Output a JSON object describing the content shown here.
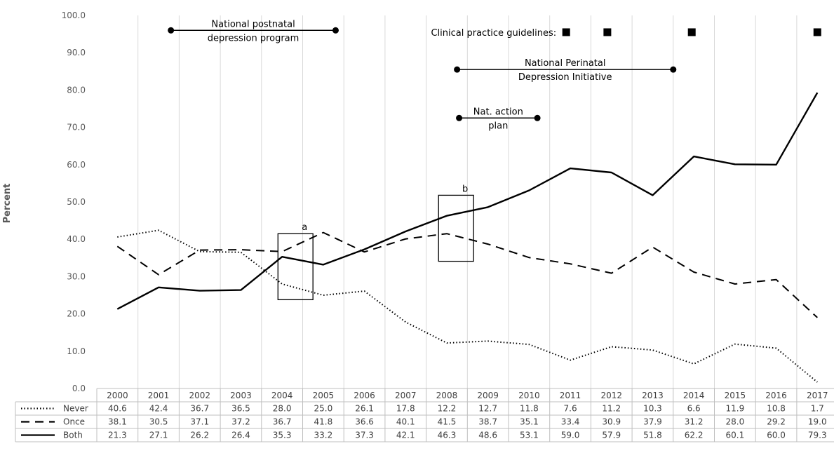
{
  "chart_data": {
    "type": "line",
    "ylabel": "Percent",
    "ylim": [
      0,
      100
    ],
    "grid": "vertical",
    "yticks": [
      "0.0",
      "10.0",
      "20.0",
      "30.0",
      "40.0",
      "50.0",
      "60.0",
      "70.0",
      "80.0",
      "90.0",
      "100.0"
    ],
    "categories": [
      "2000",
      "2001",
      "2002",
      "2003",
      "2004",
      "2005",
      "2006",
      "2007",
      "2008",
      "2009",
      "2010",
      "2011",
      "2012",
      "2013",
      "2014",
      "2015",
      "2016",
      "2017"
    ],
    "series": [
      {
        "name": "Never",
        "style": "dotted",
        "color": "#000000",
        "values": [
          40.6,
          42.4,
          36.7,
          36.5,
          28.0,
          25.0,
          26.1,
          17.8,
          12.2,
          12.7,
          11.8,
          7.6,
          11.2,
          10.3,
          6.6,
          11.9,
          10.8,
          1.7
        ],
        "labels": [
          "40.6",
          "42.4",
          "36.7",
          "36.5",
          "28.0",
          "25.0",
          "26.1",
          "17.8",
          "12.2",
          "12.7",
          "11.8",
          "7.6",
          "11.2",
          "10.3",
          "6.6",
          "11.9",
          "10.8",
          "1.7"
        ]
      },
      {
        "name": "Once",
        "style": "dashed",
        "color": "#000000",
        "values": [
          38.1,
          30.5,
          37.1,
          37.2,
          36.7,
          41.8,
          36.6,
          40.1,
          41.5,
          38.7,
          35.1,
          33.4,
          30.9,
          37.9,
          31.2,
          28.0,
          29.2,
          19.0
        ],
        "labels": [
          "38.1",
          "30.5",
          "37.1",
          "37.2",
          "36.7",
          "41.8",
          "36.6",
          "40.1",
          "41.5",
          "38.7",
          "35.1",
          "33.4",
          "30.9",
          "37.9",
          "31.2",
          "28.0",
          "29.2",
          "19.0"
        ]
      },
      {
        "name": "Both",
        "style": "solid",
        "color": "#000000",
        "values": [
          21.3,
          27.1,
          26.2,
          26.4,
          35.3,
          33.2,
          37.3,
          42.1,
          46.3,
          48.6,
          53.1,
          59.0,
          57.9,
          51.8,
          62.2,
          60.1,
          60.0,
          79.3
        ],
        "labels": [
          "21.3",
          "27.1",
          "26.2",
          "26.4",
          "35.3",
          "33.2",
          "37.3",
          "42.1",
          "46.3",
          "48.6",
          "53.1",
          "59.0",
          "57.9",
          "51.8",
          "62.2",
          "60.1",
          "60.0",
          "79.3"
        ]
      }
    ],
    "annotations": {
      "ranges": [
        {
          "name": "postnatal-program",
          "text_lines": [
            "National postnatal",
            "depression program"
          ],
          "start": 2001.3,
          "end": 2005.3,
          "y": 96
        },
        {
          "name": "perinatal-initiative",
          "text_lines": [
            "National Perinatal",
            "Depression Initiative"
          ],
          "start": 2008.25,
          "end": 2013.5,
          "y": 85.5
        },
        {
          "name": "action-plan",
          "text_lines": [
            "Nat. action",
            "plan"
          ],
          "start": 2008.3,
          "end": 2010.2,
          "y": 72.5
        }
      ],
      "guidelines": {
        "label": "Clinical practice guidelines:",
        "years": [
          2010.9,
          2011.9,
          2013.95,
          2017.0
        ],
        "y": 95.5
      },
      "boxes": [
        {
          "label": "a",
          "x0": 2003.9,
          "x1": 2004.75,
          "y0": 23.8,
          "y1": 41.5
        },
        {
          "label": "b",
          "x0": 2007.8,
          "x1": 2008.65,
          "y0": 34.1,
          "y1": 51.8
        }
      ]
    }
  }
}
